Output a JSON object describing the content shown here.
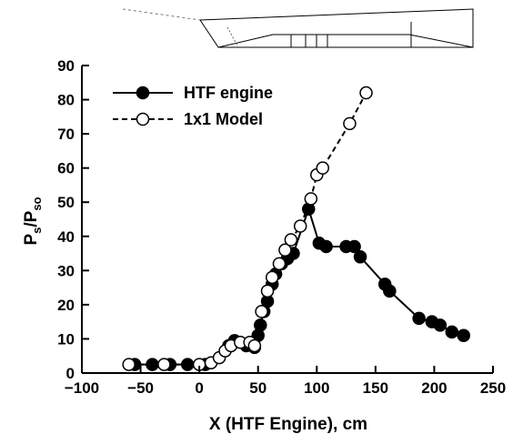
{
  "chart_data": {
    "type": "line",
    "xlabel": "X (HTF Engine), cm",
    "ylabel_main": "P",
    "ylabel_sub1": "s",
    "ylabel_slash": "/P",
    "ylabel_sub2": "so",
    "xlim": [
      -100,
      250
    ],
    "ylim": [
      0,
      90
    ],
    "xticks": [
      -100,
      -50,
      0,
      50,
      100,
      150,
      200,
      250
    ],
    "yticks": [
      0,
      10,
      20,
      30,
      40,
      50,
      60,
      70,
      80,
      90
    ],
    "legend_position": "top-left",
    "grid": false,
    "series": [
      {
        "name": "HTF engine",
        "marker": "filled-circle",
        "line": "solid",
        "points": [
          [
            -55,
            2.5
          ],
          [
            -40,
            2.5
          ],
          [
            -25,
            2.5
          ],
          [
            -10,
            2.5
          ],
          [
            5,
            2.5
          ],
          [
            25,
            8
          ],
          [
            30,
            9.5
          ],
          [
            40,
            8
          ],
          [
            47,
            7.5
          ],
          [
            50,
            11
          ],
          [
            52,
            14
          ],
          [
            55,
            18
          ],
          [
            58,
            21
          ],
          [
            62,
            26
          ],
          [
            65,
            29
          ],
          [
            70,
            32
          ],
          [
            75,
            33.5
          ],
          [
            80,
            35
          ],
          [
            93,
            48
          ],
          [
            102,
            38
          ],
          [
            108,
            37
          ],
          [
            125,
            37
          ],
          [
            132,
            37
          ],
          [
            137,
            34
          ],
          [
            158,
            26
          ],
          [
            162,
            24
          ],
          [
            187,
            16
          ],
          [
            198,
            15
          ],
          [
            205,
            14
          ],
          [
            215,
            12
          ],
          [
            225,
            11
          ]
        ]
      },
      {
        "name": "1x1 Model",
        "marker": "open-circle",
        "line": "dashed",
        "points": [
          [
            -60,
            2.5
          ],
          [
            -30,
            2.5
          ],
          [
            0,
            2.5
          ],
          [
            10,
            3
          ],
          [
            17,
            4.5
          ],
          [
            22,
            6.5
          ],
          [
            27,
            8
          ],
          [
            35,
            9
          ],
          [
            43,
            9
          ],
          [
            47,
            8
          ],
          [
            53,
            18
          ],
          [
            58,
            24
          ],
          [
            62,
            28
          ],
          [
            68,
            32
          ],
          [
            73,
            36
          ],
          [
            78,
            39
          ],
          [
            86,
            43
          ],
          [
            95,
            51
          ],
          [
            100,
            58
          ],
          [
            105,
            60
          ],
          [
            128,
            73
          ],
          [
            142,
            82
          ]
        ]
      }
    ]
  }
}
